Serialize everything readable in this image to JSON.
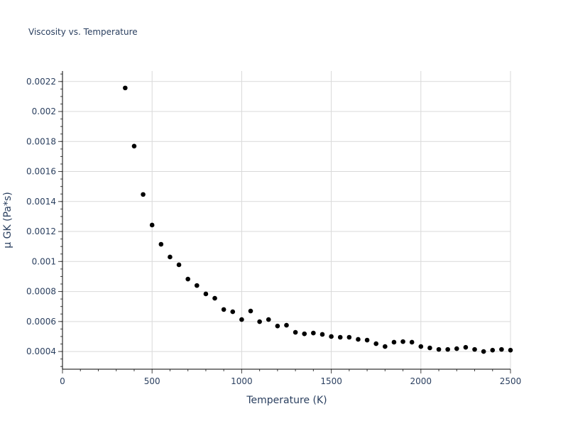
{
  "chart_data": {
    "type": "scatter",
    "title": "Viscosity vs. Temperature",
    "xlabel": "Temperature (K)",
    "ylabel": "μ GK (Pa*s)",
    "xlim": [
      0,
      2500
    ],
    "ylim": [
      0.000282,
      0.00227
    ],
    "grid": true,
    "x_ticks": [
      0,
      500,
      1000,
      1500,
      2000,
      2500
    ],
    "x_tick_labels": [
      "0",
      "500",
      "1000",
      "1500",
      "2000",
      "2500"
    ],
    "y_ticks": [
      0.0004,
      0.0006,
      0.0008,
      0.001,
      0.0012,
      0.0014,
      0.0016,
      0.0018,
      0.002,
      0.0022
    ],
    "y_tick_labels": [
      "0.0004",
      "0.0006",
      "0.0008",
      "0.001",
      "0.0012",
      "0.0014",
      "0.0016",
      "0.0018",
      "0.002",
      "0.0022"
    ],
    "marker_color": "#000000",
    "series": [
      {
        "x": [
          350,
          400,
          450,
          500,
          550,
          600,
          650,
          700,
          750,
          800,
          850,
          900,
          950,
          1000,
          1050,
          1100,
          1150,
          1200,
          1250,
          1300,
          1350,
          1400,
          1450,
          1500,
          1550,
          1600,
          1650,
          1700,
          1750,
          1800,
          1850,
          1900,
          1950,
          2000,
          2050,
          2100,
          2150,
          2200,
          2250,
          2300,
          2350,
          2400,
          2450,
          2500
        ],
        "y": [
          0.002157,
          0.001769,
          0.001447,
          0.001243,
          0.001115,
          0.00103,
          0.000978,
          0.000883,
          0.00084,
          0.000784,
          0.000755,
          0.00068,
          0.000665,
          0.000613,
          0.00067,
          0.000599,
          0.000613,
          0.00057,
          0.000575,
          0.000528,
          0.000518,
          0.000523,
          0.000514,
          0.0005,
          0.000495,
          0.000495,
          0.000481,
          0.000476,
          0.000452,
          0.000433,
          0.000462,
          0.000466,
          0.000462,
          0.000433,
          0.000424,
          0.000414,
          0.000414,
          0.000419,
          0.000428,
          0.000414,
          0.0004,
          0.000409,
          0.000414,
          0.000409
        ]
      }
    ]
  }
}
